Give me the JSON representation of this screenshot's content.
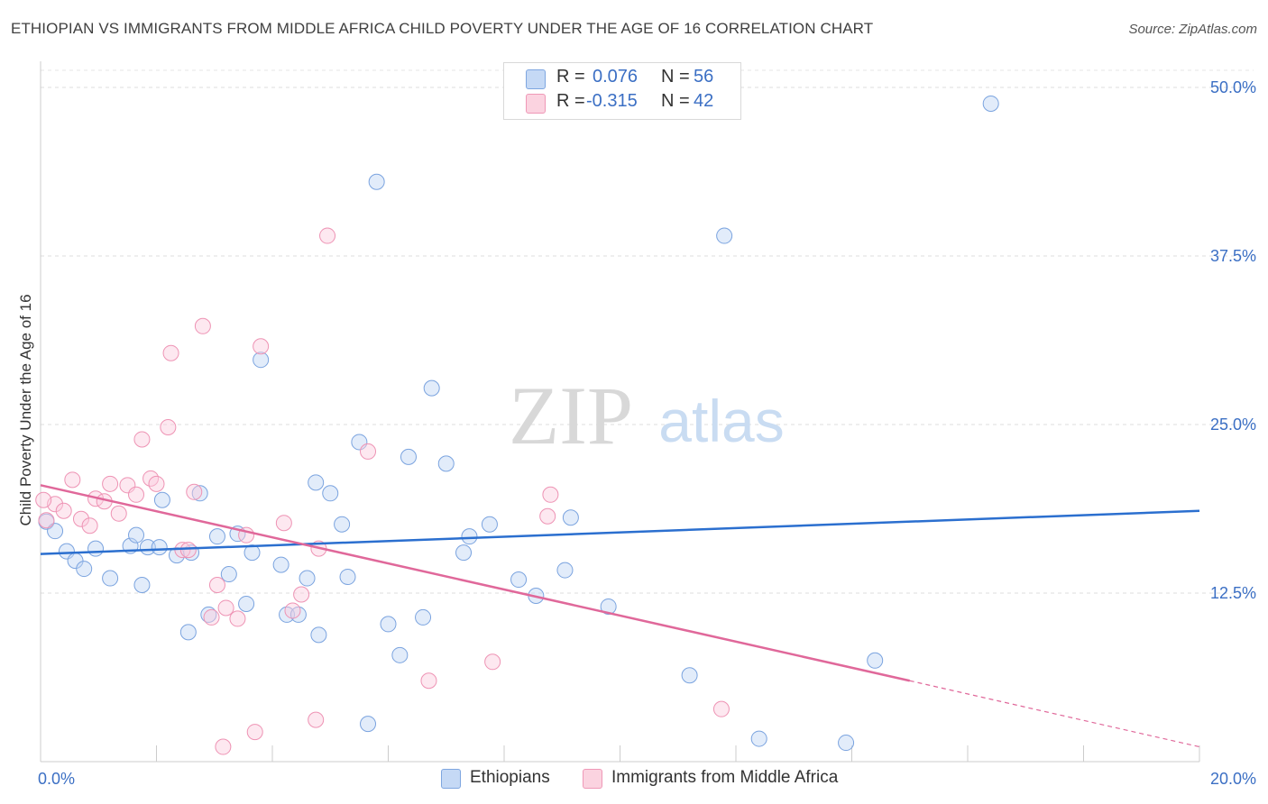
{
  "header": {
    "title": "ETHIOPIAN VS IMMIGRANTS FROM MIDDLE AFRICA CHILD POVERTY UNDER THE AGE OF 16 CORRELATION CHART",
    "source": "Source: ZipAtlas.com"
  },
  "watermark": {
    "zip": "ZIP",
    "atlas": "atlas"
  },
  "stats": {
    "ethiopians": {
      "r_label": "R =",
      "r_value": "0.076",
      "n_label": "N =",
      "n_value": "56"
    },
    "middle_africa": {
      "r_label": "R =",
      "r_value": "-0.315",
      "n_label": "N =",
      "n_value": "42"
    }
  },
  "legend": {
    "ethiopians": "Ethiopians",
    "middle_africa": "Immigrants from Middle Africa"
  },
  "chart_data": {
    "type": "scatter",
    "title": "ETHIOPIAN VS IMMIGRANTS FROM MIDDLE AFRICA CHILD POVERTY UNDER THE AGE OF 16 CORRELATION CHART",
    "xlabel": "",
    "ylabel": "Child Poverty Under the Age of 16",
    "xlim": [
      0,
      20
    ],
    "ylim": [
      0,
      50
    ],
    "x_tick_labels": [
      "0.0%",
      "20.0%"
    ],
    "y_ticks": [
      12.5,
      25.0,
      37.5,
      50.0
    ],
    "y_tick_labels": [
      "12.5%",
      "25.0%",
      "37.5%",
      "50.0%"
    ],
    "grid": true,
    "legend_position": "bottom-center",
    "colors": {
      "ethiopians": "#6f9fdf",
      "middle_africa": "#ef8fb0",
      "eth_line": "#2b6fcf",
      "ma_line": "#e0689a",
      "axis_label": "#3b6fc4"
    },
    "series": [
      {
        "name": "Ethiopians",
        "points": [
          [
            0.1,
            17.8
          ],
          [
            0.25,
            17.1
          ],
          [
            0.45,
            15.6
          ],
          [
            0.6,
            14.9
          ],
          [
            0.75,
            14.3
          ],
          [
            0.95,
            15.8
          ],
          [
            1.2,
            13.6
          ],
          [
            1.55,
            16.0
          ],
          [
            1.65,
            16.8
          ],
          [
            1.85,
            15.9
          ],
          [
            1.75,
            13.1
          ],
          [
            2.05,
            15.9
          ],
          [
            2.1,
            19.4
          ],
          [
            2.35,
            15.3
          ],
          [
            2.55,
            9.6
          ],
          [
            2.6,
            15.5
          ],
          [
            2.75,
            19.9
          ],
          [
            2.9,
            10.9
          ],
          [
            3.05,
            16.7
          ],
          [
            3.25,
            13.9
          ],
          [
            3.4,
            16.9
          ],
          [
            3.55,
            11.7
          ],
          [
            3.65,
            15.5
          ],
          [
            3.8,
            29.8
          ],
          [
            4.15,
            14.6
          ],
          [
            4.25,
            10.9
          ],
          [
            4.45,
            10.9
          ],
          [
            4.6,
            13.6
          ],
          [
            4.75,
            20.7
          ],
          [
            4.8,
            9.4
          ],
          [
            5.0,
            19.9
          ],
          [
            5.2,
            17.6
          ],
          [
            5.3,
            13.7
          ],
          [
            5.5,
            23.7
          ],
          [
            5.65,
            2.8
          ],
          [
            5.8,
            43.0
          ],
          [
            6.0,
            10.2
          ],
          [
            6.2,
            7.9
          ],
          [
            6.35,
            22.6
          ],
          [
            6.6,
            10.7
          ],
          [
            6.75,
            27.7
          ],
          [
            7.0,
            22.1
          ],
          [
            7.3,
            15.5
          ],
          [
            7.4,
            16.7
          ],
          [
            7.75,
            17.6
          ],
          [
            8.25,
            13.5
          ],
          [
            8.55,
            12.3
          ],
          [
            9.05,
            14.2
          ],
          [
            9.15,
            18.1
          ],
          [
            9.8,
            11.5
          ],
          [
            11.2,
            6.4
          ],
          [
            11.8,
            39.0
          ],
          [
            12.4,
            1.7
          ],
          [
            13.9,
            1.4
          ],
          [
            14.4,
            7.5
          ],
          [
            16.4,
            48.8
          ]
        ]
      },
      {
        "name": "Immigrants from Middle Africa",
        "points": [
          [
            0.1,
            17.9
          ],
          [
            0.25,
            19.1
          ],
          [
            0.4,
            18.6
          ],
          [
            0.55,
            20.9
          ],
          [
            0.7,
            18.0
          ],
          [
            0.85,
            17.5
          ],
          [
            0.95,
            19.5
          ],
          [
            1.1,
            19.3
          ],
          [
            1.2,
            20.6
          ],
          [
            1.35,
            18.4
          ],
          [
            1.5,
            20.5
          ],
          [
            1.65,
            19.8
          ],
          [
            1.75,
            23.9
          ],
          [
            1.9,
            21.0
          ],
          [
            2.0,
            20.6
          ],
          [
            2.2,
            24.8
          ],
          [
            2.25,
            30.3
          ],
          [
            2.45,
            15.7
          ],
          [
            2.55,
            15.7
          ],
          [
            2.65,
            20.0
          ],
          [
            2.8,
            32.3
          ],
          [
            2.95,
            10.7
          ],
          [
            3.05,
            13.1
          ],
          [
            3.15,
            1.1
          ],
          [
            3.2,
            11.4
          ],
          [
            3.4,
            10.6
          ],
          [
            3.55,
            16.8
          ],
          [
            3.7,
            2.2
          ],
          [
            3.8,
            30.8
          ],
          [
            4.2,
            17.7
          ],
          [
            4.35,
            11.2
          ],
          [
            4.5,
            12.4
          ],
          [
            4.75,
            3.1
          ],
          [
            4.8,
            15.8
          ],
          [
            4.95,
            39.0
          ],
          [
            5.65,
            23.0
          ],
          [
            6.7,
            6.0
          ],
          [
            7.8,
            7.4
          ],
          [
            8.75,
            18.2
          ],
          [
            8.8,
            19.8
          ],
          [
            11.75,
            3.9
          ],
          [
            0.05,
            19.4
          ]
        ]
      }
    ],
    "trendlines": [
      {
        "name": "Ethiopians",
        "x": [
          0,
          20
        ],
        "y": [
          15.4,
          18.6
        ]
      },
      {
        "name": "Immigrants from Middle Africa",
        "x": [
          0,
          15.0,
          20
        ],
        "y": [
          20.5,
          6.0,
          1.1
        ]
      }
    ]
  }
}
